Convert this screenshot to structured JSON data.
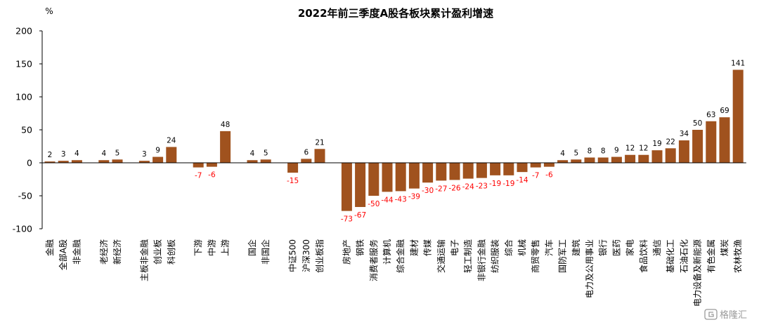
{
  "chart_data": {
    "type": "bar",
    "title": "2022年前三季度A股各板块累计盈利增速",
    "unit": "%",
    "ylim": [
      -100,
      200
    ],
    "yticks": [
      "200",
      "150",
      "100",
      "50",
      "0",
      "-50",
      "-100"
    ],
    "legend": "none",
    "grid": false,
    "colors": {
      "bar": "#A0521E",
      "positive_label": "#000000",
      "negative_label": "#FF0000"
    },
    "categories": [
      "金融",
      "全部A股",
      "非金融",
      "",
      "老经济",
      "新经济",
      "",
      "主板非金融",
      "创业板",
      "科创板",
      "",
      "下游",
      "中游",
      "上游",
      "",
      "国企",
      "非国企",
      "",
      "中证500",
      "沪深300",
      "创业板指",
      "",
      "房地产",
      "钢铁",
      "消费者服务",
      "计算机",
      "综合金融",
      "建材",
      "传媒",
      "交通运输",
      "电子",
      "轻工制造",
      "非银行金融",
      "纺织服装",
      "综合",
      "机械",
      "商贸零售",
      "汽车",
      "国防军工",
      "建筑",
      "电力及公用事业",
      "银行",
      "医药",
      "家电",
      "食品饮料",
      "通信",
      "基础化工",
      "石油石化",
      "电力设备及新能源",
      "有色金属",
      "煤炭",
      "农林牧渔"
    ],
    "values": [
      2,
      3,
      4,
      null,
      4,
      5,
      null,
      3,
      9,
      24,
      null,
      -7,
      -6,
      48,
      null,
      4,
      5,
      null,
      -15,
      6,
      21,
      null,
      -73,
      -67,
      -50,
      -44,
      -43,
      -39,
      -30,
      -27,
      -26,
      -24,
      -23,
      -19,
      -19,
      -14,
      -7,
      -6,
      4,
      5,
      8,
      8,
      9,
      12,
      12,
      19,
      22,
      34,
      50,
      63,
      69,
      141
    ]
  },
  "watermark": {
    "text": "格隆汇",
    "icon": "gelonghui-logo-icon"
  }
}
